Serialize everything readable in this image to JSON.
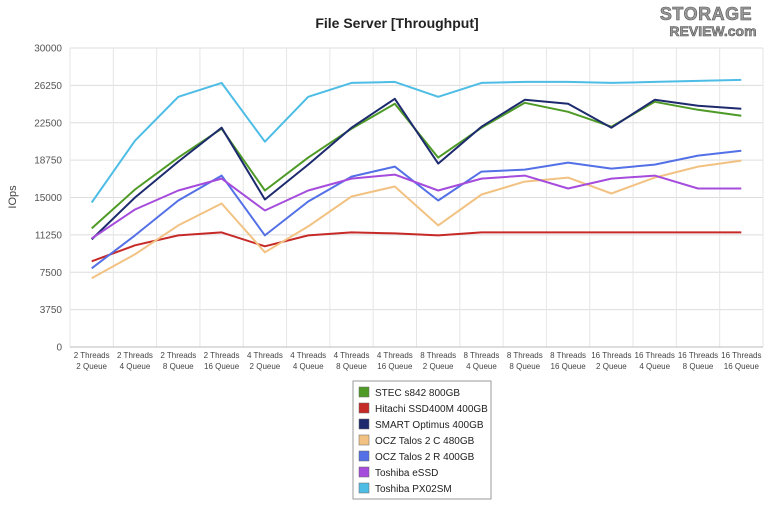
{
  "logo": {
    "line1": "STORAGE",
    "line2": "REVIEW.com"
  },
  "chart_data": {
    "type": "line",
    "title": "File Server [Throughput]",
    "xlabel": "",
    "ylabel": "IOps",
    "ylim": [
      0,
      30000
    ],
    "yticks": [
      0,
      3750,
      7500,
      11250,
      15000,
      18750,
      22500,
      26250,
      30000
    ],
    "grid": true,
    "legend_position": "bottom",
    "categories": [
      [
        "2 Threads",
        "2 Queue"
      ],
      [
        "2 Threads",
        "4 Queue"
      ],
      [
        "2 Threads",
        "8 Queue"
      ],
      [
        "2 Threads",
        "16 Queue"
      ],
      [
        "4 Threads",
        "2 Queue"
      ],
      [
        "4 Threads",
        "4 Queue"
      ],
      [
        "4 Threads",
        "8 Queue"
      ],
      [
        "4 Threads",
        "16 Queue"
      ],
      [
        "8 Threads",
        "2 Queue"
      ],
      [
        "8 Threads",
        "4 Queue"
      ],
      [
        "8 Threads",
        "8 Queue"
      ],
      [
        "8 Threads",
        "16 Queue"
      ],
      [
        "16 Threads",
        "2 Queue"
      ],
      [
        "16 Threads",
        "4 Queue"
      ],
      [
        "16 Threads",
        "8 Queue"
      ],
      [
        "16 Threads",
        "16 Queue"
      ]
    ],
    "series": [
      {
        "name": "STEC s842 800GB",
        "color": "#4e9a26",
        "values": [
          11900,
          15800,
          19000,
          21900,
          15700,
          19000,
          21900,
          24400,
          19000,
          22000,
          24500,
          23600,
          22100,
          24600,
          23800,
          23200
        ]
      },
      {
        "name": "Hitachi SSD400M 400GB",
        "color": "#c62a27",
        "values": [
          8600,
          10200,
          11200,
          11500,
          10100,
          11200,
          11500,
          11400,
          11200,
          11500,
          11500,
          11500,
          11500,
          11500,
          11500,
          11500
        ]
      },
      {
        "name": "SMART Optimus 400GB",
        "color": "#1d2a6e",
        "values": [
          10800,
          15000,
          18600,
          22000,
          14800,
          18300,
          22000,
          24900,
          18400,
          22100,
          24800,
          24400,
          22000,
          24800,
          24200,
          23900
        ]
      },
      {
        "name": "OCZ Talos 2 C 480GB",
        "color": "#f2c283",
        "values": [
          6900,
          9300,
          12200,
          14400,
          9500,
          12100,
          15100,
          16100,
          12200,
          15300,
          16600,
          17000,
          15400,
          17000,
          18100,
          18700
        ]
      },
      {
        "name": "OCZ Talos 2 R 400GB",
        "color": "#5370e6",
        "values": [
          7900,
          11200,
          14700,
          17200,
          11200,
          14600,
          17100,
          18100,
          14700,
          17600,
          17800,
          18500,
          17900,
          18300,
          19200,
          19700
        ]
      },
      {
        "name": "Toshiba eSSD",
        "color": "#a54cdc",
        "values": [
          10900,
          13800,
          15700,
          16900,
          13700,
          15700,
          16900,
          17300,
          15700,
          16900,
          17200,
          15900,
          16900,
          17200,
          15900,
          15900
        ]
      },
      {
        "name": "Toshiba PX02SM",
        "color": "#4ebde6",
        "values": [
          14500,
          20700,
          25100,
          26500,
          20600,
          25100,
          26500,
          26600,
          25100,
          26500,
          26600,
          26600,
          26500,
          26600,
          26700,
          26800
        ]
      }
    ]
  }
}
